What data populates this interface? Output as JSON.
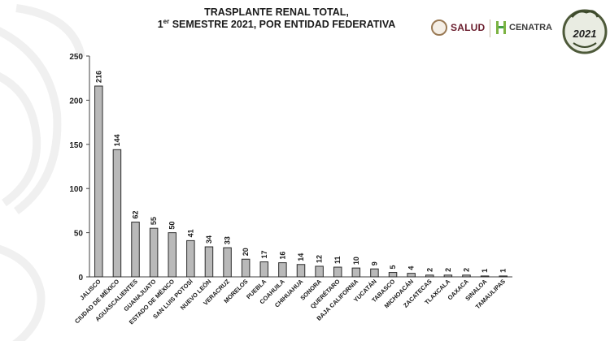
{
  "header": {
    "title_line1": "TRASPLANTE RENAL TOTAL,",
    "title_line2_pre": "1",
    "title_line2_sup": "er",
    "title_line2_post": " SEMESTRE 2021, POR ENTIDAD FEDERATIVA"
  },
  "logos": {
    "salud_text": "SALUD",
    "cenatra_text": "CENATRA",
    "badge_year": "2021"
  },
  "colors": {
    "bar_fill": "#b9b9b9",
    "bar_stroke": "#2b2b2b",
    "axis": "#404040",
    "ornament": "#f2f2f2"
  },
  "chart_data": {
    "type": "bar",
    "title": "TRASPLANTE RENAL TOTAL, 1er SEMESTRE 2021, POR ENTIDAD FEDERATIVA",
    "categories": [
      "JALISCO",
      "CIUDAD DE MÉXICO",
      "AGUASCALIENTES",
      "GUANAJUATO",
      "ESTADO DE MÉXICO",
      "SAN LUIS POTOSÍ",
      "NUEVO LEÓN",
      "VERACRUZ",
      "MORELOS",
      "PUEBLA",
      "COAHUILA",
      "CHIHUAHUA",
      "SONORA",
      "QUERÉTARO",
      "BAJA CALIFORNIA",
      "YUCATÁN",
      "TABASCO",
      "MICHOACÁN",
      "ZACATECAS",
      "TLAXCALA",
      "OAXACA",
      "SINALOA",
      "TAMAULIPAS"
    ],
    "values": [
      216,
      144,
      62,
      55,
      50,
      41,
      34,
      33,
      20,
      17,
      16,
      14,
      12,
      11,
      10,
      9,
      5,
      4,
      2,
      2,
      2,
      1,
      1
    ],
    "yticks": [
      0,
      50,
      100,
      150,
      200,
      250
    ],
    "ylim": [
      0,
      250
    ],
    "grid": false,
    "legend": "none"
  }
}
